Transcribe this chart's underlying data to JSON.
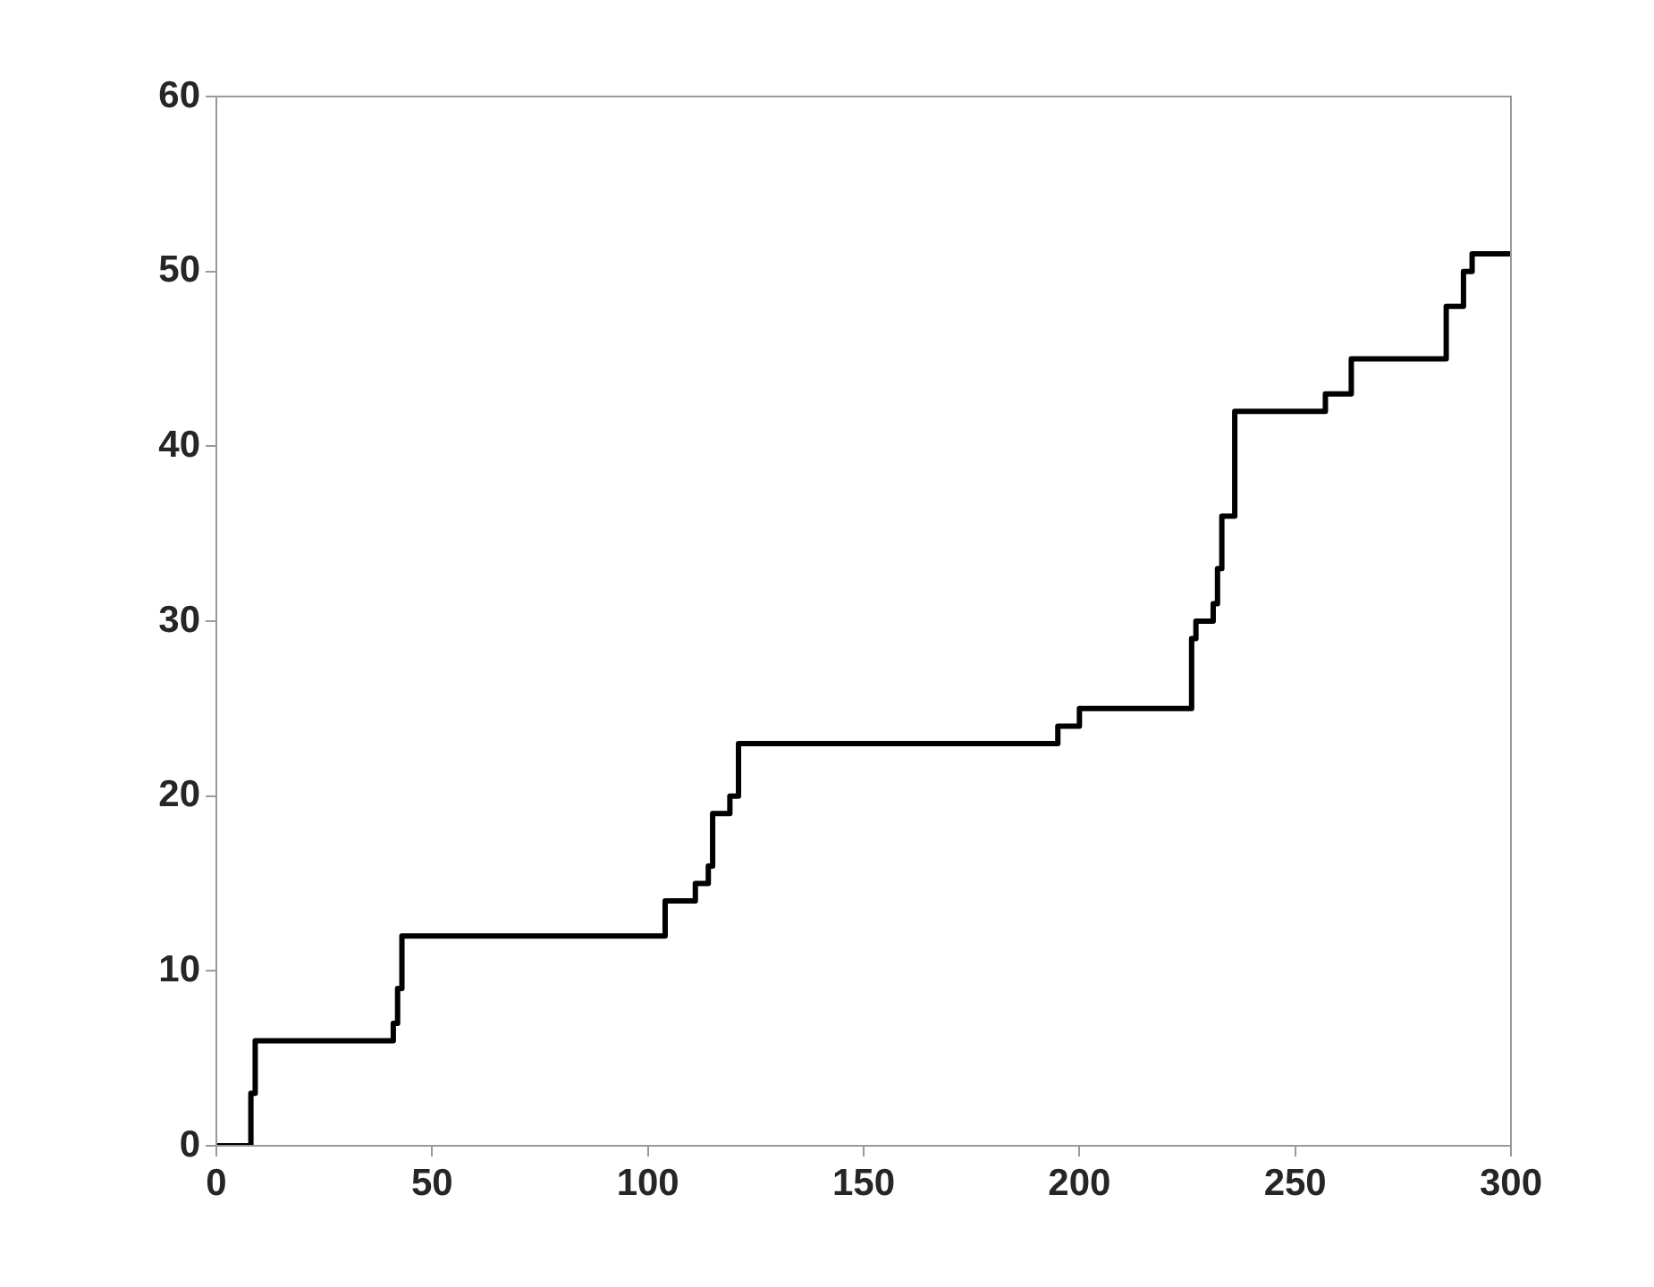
{
  "chart_data": {
    "type": "step",
    "x": [
      0,
      8,
      9,
      41,
      42,
      43,
      104,
      111,
      114,
      115,
      119,
      121,
      195,
      200,
      226,
      227,
      231,
      232,
      233,
      236,
      257,
      263,
      285,
      289,
      291,
      300
    ],
    "values": [
      0,
      3,
      6,
      7,
      9,
      12,
      14,
      15,
      16,
      19,
      20,
      23,
      24,
      25,
      29,
      30,
      31,
      33,
      36,
      42,
      43,
      45,
      48,
      50,
      51,
      51
    ],
    "color": "#000000",
    "xlim": [
      0,
      300
    ],
    "xticks": [
      0,
      50,
      100,
      150,
      200,
      250,
      300
    ],
    "ylim": [
      0,
      60
    ],
    "yticks": [
      0,
      10,
      20,
      30,
      40,
      50,
      60
    ],
    "grid": false,
    "legend": false,
    "marker": "none",
    "line_style": "solid"
  }
}
